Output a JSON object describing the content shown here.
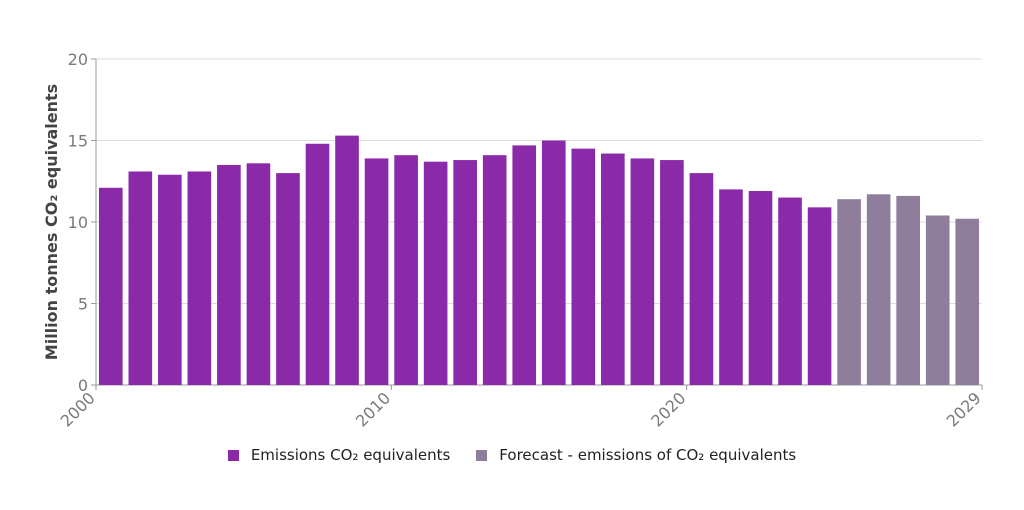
{
  "chart_data": {
    "type": "bar",
    "ylabel": "Million tonnes CO₂ equivalents",
    "xlabel": "",
    "ylim": [
      0,
      20
    ],
    "yticks": [
      0,
      5,
      10,
      15,
      20
    ],
    "xticks": [
      "2000",
      "2010",
      "2020",
      "2029"
    ],
    "grid": true,
    "legend_position": "bottom",
    "categories": [
      "2000",
      "2001",
      "2002",
      "2003",
      "2004",
      "2005",
      "2006",
      "2007",
      "2008",
      "2009",
      "2010",
      "2011",
      "2012",
      "2013",
      "2014",
      "2015",
      "2016",
      "2017",
      "2018",
      "2019",
      "2020",
      "2021",
      "2022",
      "2023",
      "2024",
      "2025",
      "2026",
      "2027",
      "2028",
      "2029"
    ],
    "series": [
      {
        "name": "Emissions CO₂ equivalents",
        "color": "#8a2aa8",
        "values": [
          12.1,
          13.1,
          12.9,
          13.1,
          13.5,
          13.6,
          13.0,
          14.8,
          15.3,
          13.9,
          14.1,
          13.7,
          13.8,
          14.1,
          14.7,
          15.0,
          14.5,
          14.2,
          13.9,
          13.8,
          13.0,
          12.0,
          11.9,
          11.5,
          10.9,
          null,
          null,
          null,
          null,
          null
        ]
      },
      {
        "name": "Forecast - emissions of CO₂ equivalents",
        "color": "#8e7e9c",
        "values": [
          null,
          null,
          null,
          null,
          null,
          null,
          null,
          null,
          null,
          null,
          null,
          null,
          null,
          null,
          null,
          null,
          null,
          null,
          null,
          null,
          null,
          null,
          null,
          null,
          null,
          11.4,
          11.7,
          11.6,
          10.4,
          10.2
        ]
      }
    ]
  }
}
